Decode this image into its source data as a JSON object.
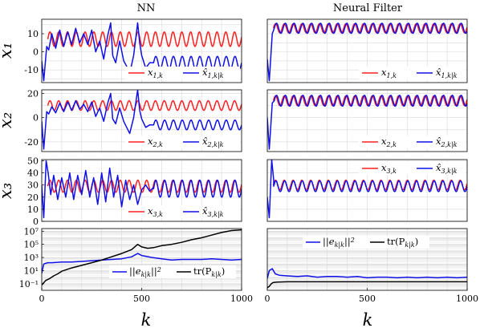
{
  "figure": {
    "columns": [
      "NN",
      "Neural Filter"
    ],
    "row_labels": [
      "x₁",
      "x₂",
      "x₃"
    ],
    "xlabel": "k",
    "colors": {
      "truth": "#ff1f1f",
      "estimate": "#1010e8",
      "trace": "#000000",
      "grid": "#d9d9d9"
    }
  },
  "chart_data": [
    {
      "panel": "NN-x1",
      "type": "line",
      "xlim": [
        0,
        1000
      ],
      "ylim": [
        -17,
        18
      ],
      "yticks": [
        -10,
        0,
        10
      ],
      "xticks": [
        0,
        500,
        1000
      ],
      "grid": true,
      "legend_position": "bottom-right",
      "series": [
        {
          "name": "x_{1,k}",
          "role": "truth",
          "start": 30,
          "mean": 7,
          "amp": 4,
          "period": 44
        },
        {
          "name": "x̂_{1,k|k}",
          "role": "estimate",
          "x": [
            0,
            10,
            25,
            35,
            50,
            70,
            90,
            110,
            130,
            150,
            170,
            190,
            210,
            230,
            250,
            270,
            290,
            310,
            330,
            345,
            355,
            370,
            390,
            410,
            425,
            440,
            460,
            480,
            490,
            500,
            520,
            540,
            560
          ],
          "y": [
            -5,
            -16,
            3,
            1,
            10,
            2,
            12,
            3,
            11,
            4,
            13,
            5,
            10,
            4,
            12,
            0,
            6,
            -4,
            9,
            16,
            -2,
            -6,
            6,
            -5,
            -8,
            -12,
            -2,
            16,
            5,
            -2,
            -9,
            -6,
            -6
          ],
          "after": {
            "from": 560,
            "mean": -6,
            "amp": 3.5,
            "period": 44
          }
        }
      ]
    },
    {
      "panel": "NF-x1",
      "type": "line",
      "xlim": [
        0,
        1000
      ],
      "ylim": [
        -17,
        18
      ],
      "yticks": [],
      "xticks": [
        0,
        500,
        1000
      ],
      "grid": true,
      "legend_position": "bottom-right",
      "series": [
        {
          "name": "x_{1,k}",
          "role": "truth",
          "start": 30,
          "mean": 13,
          "amp": 2.5,
          "period": 44
        },
        {
          "name": "x̂_{1,k|k}",
          "role": "estimate",
          "x": [
            0,
            10,
            25,
            35
          ],
          "y": [
            -4,
            -16,
            10,
            13
          ],
          "after": {
            "from": 35,
            "mean": 13,
            "amp": 2.8,
            "period": 44
          }
        }
      ]
    },
    {
      "panel": "NN-x2",
      "type": "line",
      "xlim": [
        0,
        1000
      ],
      "ylim": [
        -28,
        23
      ],
      "yticks": [
        -20,
        0,
        20
      ],
      "xticks": [
        0,
        500,
        1000
      ],
      "grid": true,
      "legend_position": "bottom-right",
      "series": [
        {
          "name": "x_{2,k}",
          "role": "truth",
          "start": 30,
          "mean": 10,
          "amp": 4,
          "period": 44
        },
        {
          "name": "x̂_{2,k|k}",
          "role": "estimate",
          "x": [
            0,
            10,
            25,
            35,
            50,
            70,
            90,
            110,
            130,
            150,
            170,
            190,
            210,
            230,
            250,
            270,
            290,
            310,
            330,
            345,
            355,
            370,
            390,
            410,
            425,
            440,
            460,
            480,
            490,
            500,
            520,
            540,
            560
          ],
          "y": [
            -3,
            -26,
            5,
            3,
            9,
            4,
            12,
            5,
            13,
            6,
            14,
            7,
            11,
            5,
            13,
            1,
            8,
            -3,
            12,
            20,
            -1,
            -5,
            8,
            -3,
            -8,
            -13,
            0,
            23,
            6,
            -1,
            -8,
            -6,
            -6
          ],
          "after": {
            "from": 560,
            "mean": -6,
            "amp": 4,
            "period": 44
          }
        }
      ]
    },
    {
      "panel": "NF-x2",
      "type": "line",
      "xlim": [
        0,
        1000
      ],
      "ylim": [
        -28,
        23
      ],
      "yticks": [],
      "xticks": [
        0,
        500,
        1000
      ],
      "grid": true,
      "legend_position": "bottom-right",
      "series": [
        {
          "name": "x_{2,k}",
          "role": "truth",
          "start": 30,
          "mean": 14,
          "amp": 4,
          "period": 44
        },
        {
          "name": "x̂_{2,k|k}",
          "role": "estimate",
          "x": [
            0,
            10,
            25,
            35
          ],
          "y": [
            0,
            -26,
            12,
            14
          ],
          "after": {
            "from": 35,
            "mean": 14,
            "amp": 4.5,
            "period": 44
          }
        }
      ]
    },
    {
      "panel": "NN-x3",
      "type": "line",
      "xlim": [
        0,
        1000
      ],
      "ylim": [
        0,
        51
      ],
      "yticks": [
        0,
        10,
        20,
        30,
        40,
        50
      ],
      "xticks": [
        0,
        500,
        1000
      ],
      "grid": true,
      "legend_position": "bottom-right",
      "series": [
        {
          "name": "x_{3,k}",
          "role": "truth",
          "start": 30,
          "mean": 29,
          "amp": 5,
          "period": 44
        },
        {
          "name": "x̂_{3,k|k}",
          "role": "estimate",
          "x": [
            0,
            10,
            22,
            32,
            45,
            60,
            80,
            100,
            120,
            140,
            160,
            180,
            200,
            220,
            240,
            260,
            280,
            300,
            320,
            340,
            360,
            380,
            400,
            420,
            440,
            460,
            480,
            500,
            520,
            540,
            560
          ],
          "y": [
            30,
            3,
            50,
            40,
            22,
            38,
            18,
            36,
            20,
            40,
            18,
            38,
            22,
            42,
            20,
            36,
            14,
            40,
            16,
            44,
            20,
            38,
            12,
            34,
            18,
            30,
            14,
            26,
            30,
            25,
            28
          ],
          "after": {
            "from": 560,
            "mean": 27,
            "amp": 7,
            "period": 44
          }
        }
      ]
    },
    {
      "panel": "NF-x3",
      "type": "line",
      "xlim": [
        0,
        1000
      ],
      "ylim": [
        0,
        51
      ],
      "yticks": [],
      "xticks": [
        0,
        500,
        1000
      ],
      "grid": true,
      "legend_position": "top-right",
      "series": [
        {
          "name": "x_{3,k}",
          "role": "truth",
          "start": 30,
          "mean": 30,
          "amp": 4,
          "period": 44
        },
        {
          "name": "x̂_{3,k|k}",
          "role": "estimate",
          "x": [
            0,
            10,
            22,
            32
          ],
          "y": [
            20,
            3,
            51,
            34
          ],
          "after": {
            "from": 32,
            "mean": 29,
            "amp": 4.5,
            "period": 44
          }
        }
      ]
    },
    {
      "panel": "NN-err",
      "type": "line",
      "xlim": [
        0,
        1000
      ],
      "ylim": [
        -2,
        7.4
      ],
      "yscale": "log10",
      "yticks": [
        -1,
        1,
        3,
        5,
        7
      ],
      "ytick_labels": [
        "10⁻¹",
        "10¹",
        "10³",
        "10⁵",
        "10⁷"
      ],
      "xticks": [
        0,
        500,
        1000
      ],
      "grid": true,
      "legend_position": "bottom-right",
      "series": [
        {
          "name": "||e_{k|k}||²",
          "role": "estimate",
          "x": [
            0,
            10,
            20,
            30,
            50,
            100,
            150,
            200,
            250,
            300,
            350,
            400,
            450,
            480,
            500,
            550,
            600,
            650,
            700,
            750,
            800,
            850,
            900,
            950,
            1000
          ],
          "y": [
            0.6,
            2.0,
            2.1,
            2.2,
            2.2,
            2.3,
            2.3,
            2.4,
            2.5,
            2.6,
            2.7,
            2.8,
            3.1,
            3.6,
            3.3,
            3.0,
            2.8,
            2.6,
            2.7,
            2.7,
            2.7,
            2.8,
            2.7,
            2.6,
            2.7
          ]
        },
        {
          "name": "tr(P_{k|k})",
          "role": "trace",
          "x": [
            0,
            20,
            40,
            60,
            80,
            100,
            150,
            200,
            250,
            300,
            350,
            400,
            450,
            480,
            500,
            530,
            560,
            600,
            650,
            700,
            750,
            800,
            850,
            900,
            950,
            1000
          ],
          "y": [
            -1.2,
            -0.5,
            -0.2,
            0.2,
            0.5,
            0.9,
            1.4,
            1.8,
            2.2,
            2.6,
            3.1,
            3.6,
            4.2,
            5.0,
            4.6,
            4.4,
            4.5,
            4.8,
            5.0,
            5.3,
            5.7,
            6.0,
            6.4,
            6.8,
            7.1,
            7.2
          ]
        }
      ]
    },
    {
      "panel": "NF-err",
      "type": "line",
      "xlim": [
        0,
        1000
      ],
      "ylim": [
        -2,
        7.4
      ],
      "yscale": "log10",
      "yticks": [],
      "xticks": [
        0,
        500,
        1000
      ],
      "grid": true,
      "legend_position": "top-center",
      "series": [
        {
          "name": "||e_{k|k}||²",
          "role": "estimate",
          "x": [
            0,
            10,
            25,
            40,
            60,
            100,
            150,
            200,
            250,
            300,
            350,
            400,
            450,
            500,
            550,
            600,
            650,
            700,
            750,
            800,
            850,
            900,
            950,
            1000
          ],
          "y": [
            -0.2,
            1.0,
            1.3,
            0.5,
            0.3,
            0.2,
            0.1,
            0.2,
            0.0,
            0.1,
            0.1,
            0.0,
            0.1,
            -0.1,
            0.0,
            0.0,
            -0.1,
            0.0,
            -0.1,
            0.0,
            -0.1,
            0.0,
            -0.1,
            0.0
          ]
        },
        {
          "name": "tr(P_{k|k})",
          "role": "trace",
          "x": [
            0,
            10,
            20,
            30,
            50,
            100,
            200,
            300,
            400,
            500,
            600,
            700,
            800,
            900,
            1000
          ],
          "y": [
            -1.6,
            -1.4,
            -1.0,
            -0.8,
            -0.75,
            -0.7,
            -0.7,
            -0.7,
            -0.7,
            -0.7,
            -0.7,
            -0.7,
            -0.7,
            -0.7,
            -0.7
          ]
        }
      ]
    }
  ]
}
